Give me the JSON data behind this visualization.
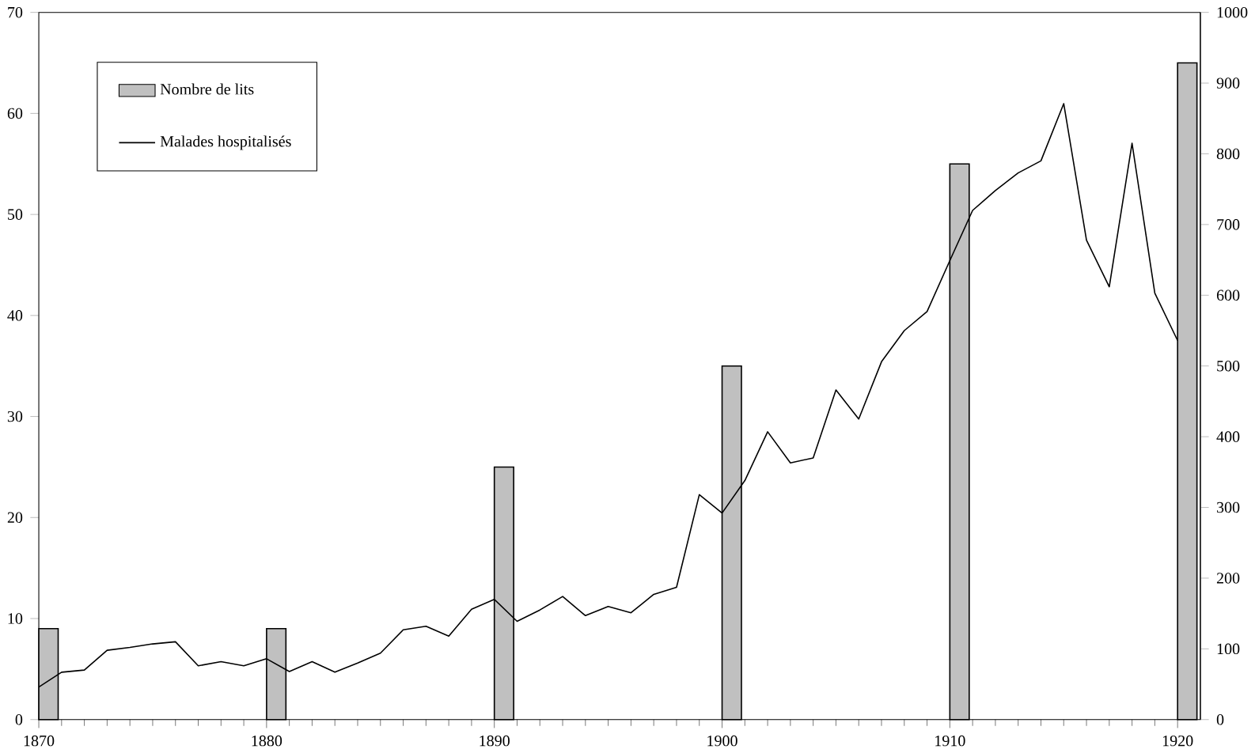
{
  "chart_data": {
    "type": "bar",
    "xlim": [
      1870,
      1921
    ],
    "xticks": [
      1870,
      1880,
      1890,
      1900,
      1910,
      1920
    ],
    "ylim": [
      0,
      70
    ],
    "yticks": [
      0,
      10,
      20,
      30,
      40,
      50,
      60,
      70
    ],
    "y2lim": [
      0,
      1000
    ],
    "y2ticks": [
      0,
      100,
      200,
      300,
      400,
      500,
      600,
      700,
      800,
      900,
      1000
    ],
    "legend": "top left",
    "series": [
      {
        "name": "Nombre de lits",
        "color": "#c0c0c0",
        "x": [
          1870,
          1880,
          1890,
          1900,
          1910,
          1920
        ],
        "values": [
          9,
          9,
          25,
          35,
          55,
          65
        ]
      },
      {
        "name": "Malades hospitalisés",
        "type": "line",
        "axis": "y2",
        "color": "#000000",
        "x": [
          1870,
          1871,
          1872,
          1873,
          1874,
          1875,
          1876,
          1877,
          1878,
          1879,
          1880,
          1881,
          1882,
          1883,
          1884,
          1885,
          1886,
          1887,
          1888,
          1889,
          1890,
          1891,
          1892,
          1893,
          1894,
          1895,
          1896,
          1897,
          1898,
          1899,
          1900,
          1901,
          1902,
          1903,
          1904,
          1905,
          1906,
          1907,
          1908,
          1909,
          1910,
          1911,
          1912,
          1913,
          1914,
          1915,
          1916,
          1917,
          1918,
          1919,
          1920
        ],
        "values": [
          46,
          67,
          70,
          98,
          102,
          107,
          110,
          76,
          82,
          76,
          86,
          68,
          82,
          67,
          80,
          94,
          127,
          132,
          118,
          156,
          170,
          139,
          155,
          174,
          147,
          160,
          151,
          177,
          187,
          318,
          292,
          338,
          407,
          363,
          370,
          466,
          425,
          506,
          550,
          577,
          649,
          720,
          748,
          773,
          790,
          871,
          678,
          612,
          815,
          603,
          536
        ]
      }
    ]
  }
}
